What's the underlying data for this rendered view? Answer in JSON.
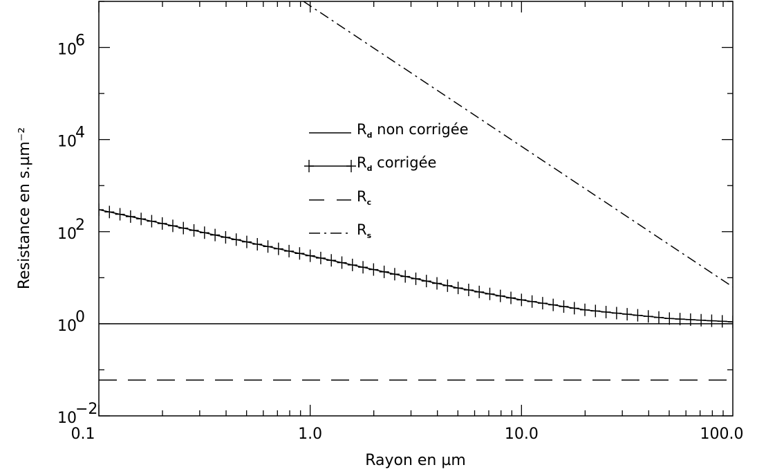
{
  "chart_data": {
    "type": "line",
    "xlabel": "Rayon en µm",
    "ylabel": "Resistance en s.µm⁻²",
    "x_scale": "log",
    "y_scale": "log",
    "xlim": [
      0.1,
      100.0
    ],
    "ylim": [
      0.01,
      10000000
    ],
    "grid": false,
    "legend_position": "center",
    "x_ticks": [
      {
        "value": 0.1,
        "label": "0.1"
      },
      {
        "value": 1.0,
        "label": "1.0"
      },
      {
        "value": 10.0,
        "label": "10.0"
      },
      {
        "value": 100.0,
        "label": "100.0"
      }
    ],
    "y_ticks": [
      {
        "value": 0.01,
        "base": "10",
        "exp": "−2"
      },
      {
        "value": 1,
        "base": "10",
        "exp": "0"
      },
      {
        "value": 100,
        "base": "10",
        "exp": "2"
      },
      {
        "value": 10000,
        "base": "10",
        "exp": "4"
      },
      {
        "value": 1000000,
        "base": "10",
        "exp": "6"
      }
    ],
    "series": [
      {
        "name": "Rd non corrigée",
        "label_main": "R",
        "label_sub": "d",
        "label_rest": " non corrigée",
        "style": "solid",
        "marker": "none",
        "x": [
          0.1,
          1.0,
          10.0,
          100.0
        ],
        "y": [
          1.0,
          1.0,
          1.0,
          1.0
        ]
      },
      {
        "name": "Rd corrigée",
        "label_main": "R",
        "label_sub": "d",
        "label_rest": " corrigée",
        "style": "solid",
        "marker": "plus",
        "x": [
          0.1,
          0.2,
          0.5,
          1.0,
          2.0,
          5.0,
          10.0,
          20.0,
          50.0,
          100.0
        ],
        "y": [
          300,
          150,
          60,
          30,
          15,
          6.0,
          3.3,
          2.0,
          1.3,
          1.1
        ]
      },
      {
        "name": "Rc",
        "label_main": "R",
        "label_sub": "c",
        "label_rest": "",
        "style": "dashed",
        "marker": "none",
        "x": [
          0.1,
          1.0,
          10.0,
          100.0
        ],
        "y": [
          0.06,
          0.06,
          0.06,
          0.06
        ]
      },
      {
        "name": "Rs",
        "label_main": "R",
        "label_sub": "s",
        "label_rest": "",
        "style": "dashdot",
        "marker": "none",
        "x": [
          0.93,
          100.0
        ],
        "y": [
          10000000,
          6.3
        ]
      }
    ]
  }
}
